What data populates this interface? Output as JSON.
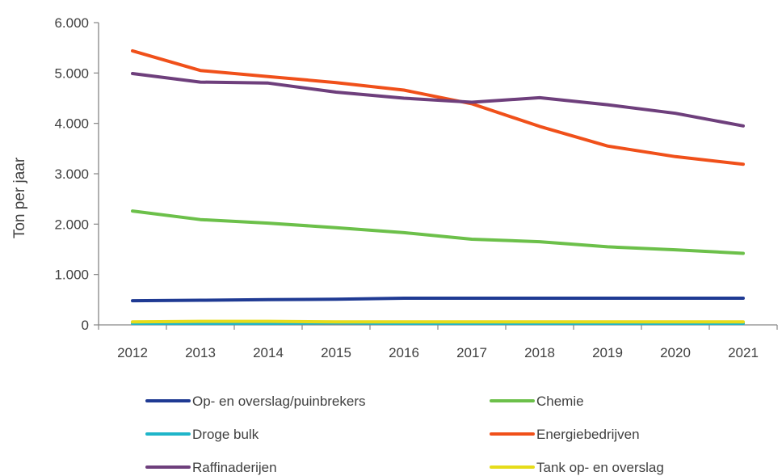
{
  "chart_data": {
    "type": "line",
    "title": "",
    "xlabel": "",
    "ylabel": "Ton per jaar",
    "categories": [
      "2012",
      "2013",
      "2014",
      "2015",
      "2016",
      "2017",
      "2018",
      "2019",
      "2020",
      "2021"
    ],
    "ylim": [
      0,
      6000
    ],
    "yticks": [
      0,
      1000,
      2000,
      3000,
      4000,
      5000,
      6000
    ],
    "ytick_labels": [
      "0",
      "1.000",
      "2.000",
      "3.000",
      "4.000",
      "5.000",
      "6.000"
    ],
    "grid": false,
    "legend_position": "bottom",
    "series": [
      {
        "name": "Op- en overslag/puinbrekers",
        "color": "#1f3a93",
        "values": [
          480,
          490,
          500,
          510,
          530,
          530,
          530,
          530,
          530,
          530
        ]
      },
      {
        "name": "Chemie",
        "color": "#6cc04a",
        "values": [
          2260,
          2090,
          2020,
          1930,
          1830,
          1700,
          1650,
          1550,
          1490,
          1420
        ]
      },
      {
        "name": "Droge bulk",
        "color": "#1fb5c9",
        "values": [
          30,
          30,
          30,
          40,
          30,
          30,
          30,
          30,
          30,
          30
        ]
      },
      {
        "name": "Energiebedrijven",
        "color": "#f0501a",
        "values": [
          5440,
          5050,
          4930,
          4810,
          4660,
          4390,
          3940,
          3550,
          3340,
          3190
        ]
      },
      {
        "name": "Raffinaderijen",
        "color": "#6e3f7c",
        "values": [
          4990,
          4820,
          4800,
          4620,
          4500,
          4420,
          4510,
          4370,
          4200,
          3950
        ]
      },
      {
        "name": "Tank op- en overslag",
        "color": "#e6dc1a",
        "values": [
          60,
          70,
          70,
          60,
          60,
          60,
          60,
          60,
          60,
          60
        ]
      }
    ]
  }
}
